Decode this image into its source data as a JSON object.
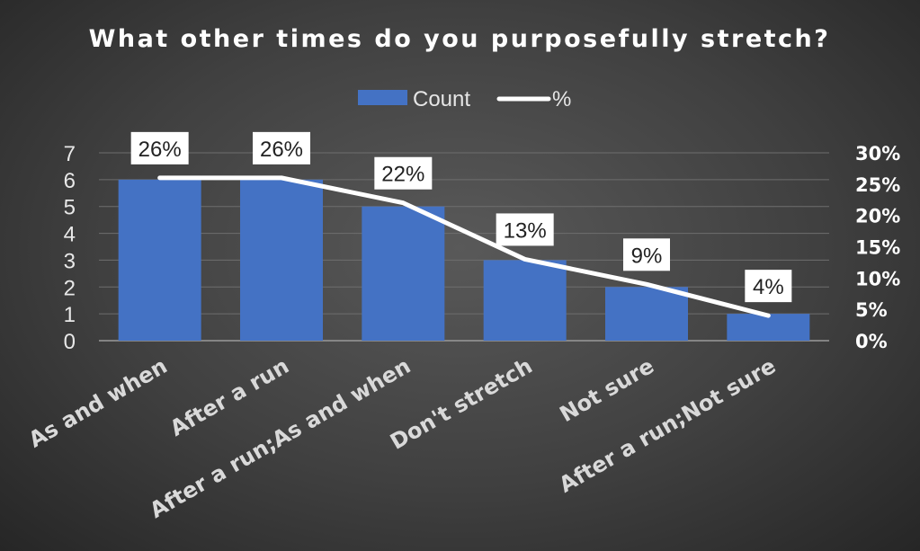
{
  "chart_data": {
    "type": "bar",
    "title": "What other times do you purposefully stretch?",
    "categories": [
      "As and when",
      "After a run",
      "After a run;As and when",
      "Don't stretch",
      "Not sure",
      "After a run;Not sure"
    ],
    "series": [
      {
        "name": "Count",
        "kind": "bar",
        "axis": "left",
        "color": "#4472C4",
        "values": [
          6,
          6,
          5,
          3,
          2,
          1
        ]
      },
      {
        "name": "%",
        "kind": "line",
        "axis": "right",
        "color": "#FFFFFF",
        "values": [
          26,
          26,
          22,
          13,
          9,
          4
        ],
        "labels": [
          "26%",
          "26%",
          "22%",
          "13%",
          "9%",
          "4%"
        ]
      }
    ],
    "y_left": {
      "lim": [
        0,
        7
      ],
      "ticks": [
        "0",
        "1",
        "2",
        "3",
        "4",
        "5",
        "6",
        "7"
      ]
    },
    "y_right": {
      "lim": [
        0,
        30
      ],
      "ticks": [
        "0%",
        "5%",
        "10%",
        "15%",
        "20%",
        "25%",
        "30%"
      ]
    },
    "grid": true,
    "legend": "top-center"
  }
}
